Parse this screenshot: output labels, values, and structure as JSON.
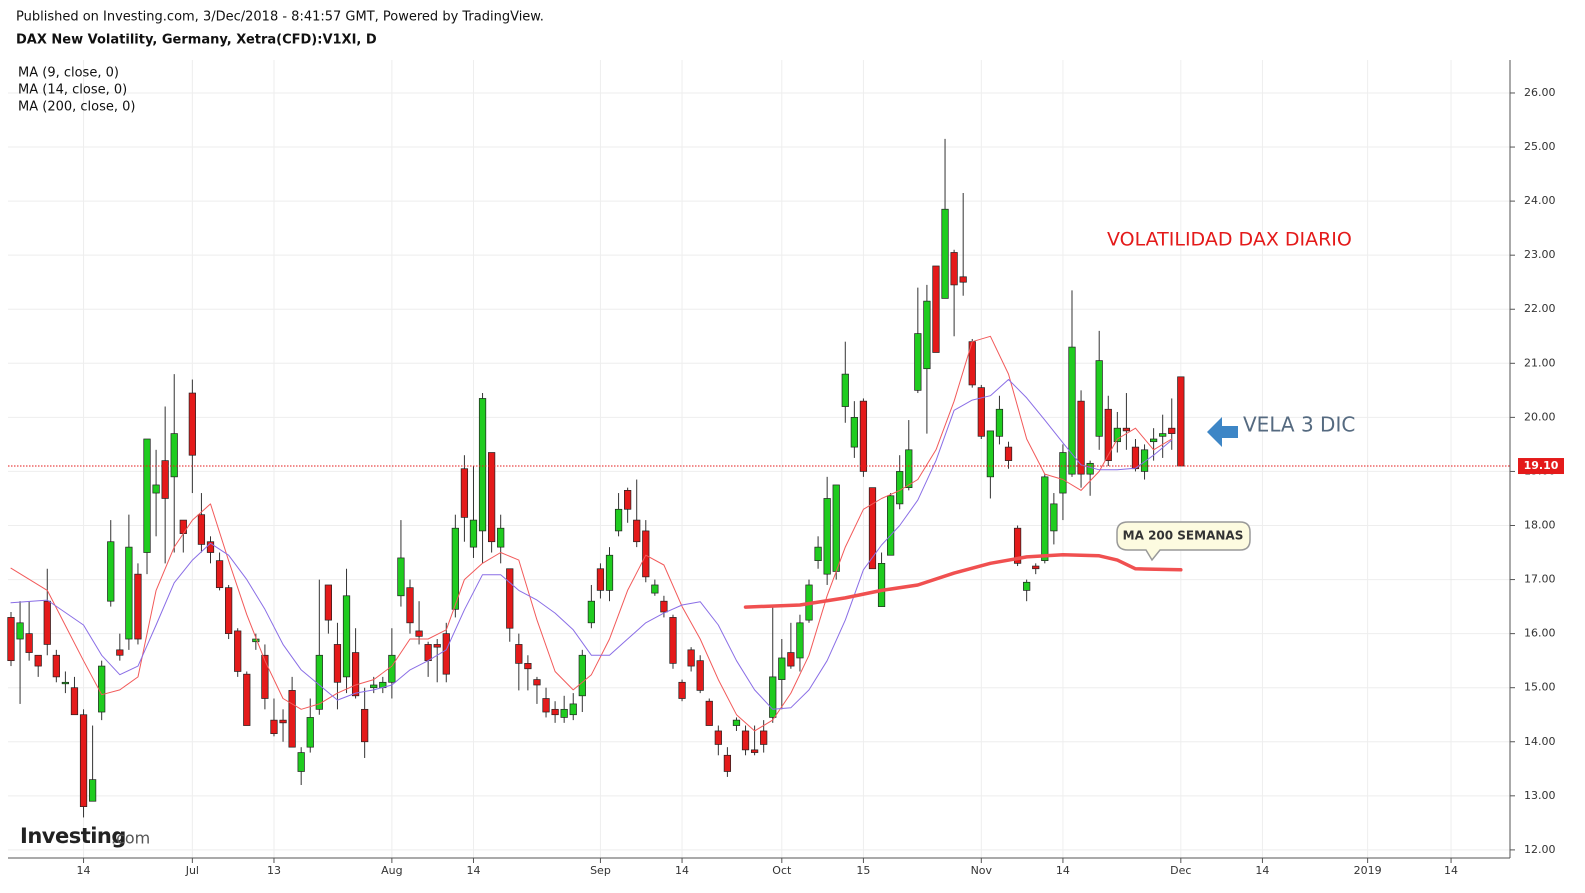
{
  "header": {
    "published": "Published on Investing.com, 3/Dec/2018 - 8:41:57 GMT, Powered by TradingView.",
    "symbol": "DAX New Volatility, Germany, Xetra(CFD):V1XI, D"
  },
  "logo": {
    "brand": "Investing",
    "suffix": ".com"
  },
  "chart_data": {
    "type": "candlestick",
    "x": [
      0,
      1,
      2,
      3,
      4,
      5,
      6,
      7,
      8,
      9,
      10,
      11,
      12,
      13,
      14,
      15,
      16,
      17,
      18,
      19,
      20,
      21,
      22,
      23,
      24,
      25,
      26,
      27,
      28,
      29,
      30,
      31,
      32,
      33,
      34,
      35,
      36,
      37,
      38,
      39,
      40,
      41,
      42,
      43,
      44,
      45,
      46,
      47,
      48,
      49,
      50,
      51,
      52,
      53,
      54,
      55,
      56,
      57,
      58,
      59,
      60,
      61,
      62,
      63,
      64,
      65,
      66,
      67,
      68,
      69,
      70,
      71,
      72,
      73,
      74,
      75,
      76,
      77,
      78,
      79,
      80,
      81,
      82,
      83,
      84,
      85,
      86,
      87,
      88,
      89,
      90,
      91,
      92,
      93,
      94,
      95,
      96,
      97,
      98,
      99,
      100,
      101,
      102,
      103,
      104,
      105,
      106,
      107,
      108,
      109,
      110,
      111,
      112,
      113,
      114,
      115,
      116,
      117,
      118,
      119,
      120,
      121,
      122,
      123,
      124,
      125,
      126,
      127,
      128,
      129
    ],
    "open": [
      16.3,
      15.9,
      16.0,
      15.6,
      16.6,
      15.6,
      15.1,
      15.0,
      14.5,
      12.9,
      14.55,
      16.6,
      15.7,
      15.9,
      17.1,
      17.5,
      18.6,
      19.2,
      18.9,
      18.1,
      20.45,
      18.2,
      17.7,
      17.35,
      16.85,
      16.05,
      15.25,
      15.85,
      15.6,
      14.4,
      14.4,
      14.95,
      13.45,
      13.9,
      14.6,
      16.9,
      15.8,
      15.2,
      15.65,
      14.6,
      15.0,
      15.0,
      15.1,
      16.7,
      16.85,
      16.05,
      15.8,
      15.8,
      16.0,
      16.45,
      19.05,
      17.6,
      17.9,
      19.35,
      17.6,
      17.2,
      15.8,
      15.45,
      15.15,
      14.8,
      14.6,
      14.45,
      14.5,
      14.85,
      16.2,
      17.2,
      16.8,
      17.9,
      18.65,
      18.1,
      17.9,
      16.75,
      16.6,
      16.3,
      15.1,
      15.7,
      15.5,
      14.75,
      14.2,
      13.75,
      14.3,
      14.2,
      13.85,
      14.2,
      14.45,
      15.15,
      15.65,
      15.55,
      16.25,
      17.35,
      17.1,
      17.15,
      20.2,
      19.45,
      20.3,
      18.7,
      16.5,
      17.45,
      18.4,
      18.7,
      20.5,
      20.9,
      22.8,
      22.2,
      23.05,
      22.6,
      21.4,
      20.55,
      18.9,
      19.65,
      19.45,
      17.95,
      16.8,
      17.25,
      17.35,
      17.9,
      18.6,
      18.95,
      20.3,
      18.95,
      19.65,
      20.15,
      19.55,
      19.8,
      19.45,
      19.0,
      19.55,
      19.65,
      19.8,
      20.75
    ],
    "high": [
      16.4,
      16.6,
      16.6,
      15.6,
      17.2,
      15.7,
      15.3,
      15.2,
      14.6,
      14.3,
      15.5,
      18.1,
      16.0,
      18.2,
      17.3,
      19.6,
      19.4,
      20.2,
      20.8,
      18.1,
      20.7,
      18.6,
      17.8,
      17.5,
      16.9,
      16.1,
      15.3,
      16.0,
      15.8,
      14.8,
      14.6,
      15.2,
      13.9,
      14.8,
      17.0,
      16.9,
      16.2,
      17.2,
      16.1,
      15.0,
      15.2,
      15.2,
      16.1,
      18.1,
      17.0,
      16.6,
      15.85,
      15.9,
      16.2,
      18.2,
      19.3,
      19.1,
      20.45,
      19.35,
      18.2,
      17.2,
      16.0,
      15.6,
      15.2,
      15.0,
      14.75,
      14.85,
      14.9,
      15.7,
      16.9,
      17.3,
      17.6,
      18.6,
      18.7,
      18.85,
      18.1,
      17.0,
      16.7,
      16.35,
      15.15,
      15.75,
      15.6,
      14.8,
      14.3,
      13.9,
      14.45,
      14.3,
      14.3,
      14.4,
      16.5,
      15.9,
      16.2,
      16.35,
      17.0,
      17.8,
      18.9,
      18.75,
      21.4,
      20.3,
      20.35,
      18.7,
      17.5,
      18.6,
      19.3,
      19.95,
      22.4,
      22.45,
      22.8,
      25.15,
      23.1,
      24.15,
      21.45,
      20.6,
      19.75,
      20.4,
      19.55,
      18.0,
      17.0,
      17.3,
      18.95,
      18.6,
      19.5,
      22.35,
      20.5,
      19.2,
      21.6,
      20.4,
      20.1,
      20.45,
      19.6,
      19.5,
      19.8,
      20.05,
      20.35,
      20.75
    ],
    "low": [
      15.4,
      14.7,
      15.5,
      15.2,
      15.6,
      15.1,
      14.9,
      14.5,
      12.6,
      12.9,
      14.4,
      16.5,
      15.5,
      15.7,
      15.8,
      17.1,
      17.8,
      17.3,
      17.5,
      17.5,
      18.6,
      17.5,
      17.3,
      16.8,
      15.9,
      15.2,
      14.3,
      15.7,
      14.6,
      14.1,
      14.0,
      13.9,
      13.2,
      13.8,
      14.5,
      16.0,
      14.6,
      14.9,
      14.8,
      13.7,
      14.9,
      14.9,
      14.8,
      16.5,
      16.0,
      15.8,
      15.2,
      15.1,
      15.1,
      16.3,
      17.7,
      17.4,
      17.3,
      17.5,
      17.3,
      15.85,
      14.95,
      14.95,
      14.7,
      14.45,
      14.35,
      14.35,
      14.4,
      14.55,
      16.1,
      16.65,
      16.6,
      17.8,
      18.05,
      17.6,
      16.95,
      16.7,
      16.3,
      15.35,
      14.75,
      15.3,
      14.9,
      14.3,
      13.75,
      13.35,
      14.2,
      13.75,
      13.75,
      13.8,
      14.35,
      14.6,
      15.35,
      15.3,
      16.2,
      17.2,
      16.9,
      17.0,
      19.9,
      19.25,
      18.9,
      17.2,
      16.5,
      17.45,
      18.3,
      18.65,
      20.45,
      19.7,
      21.2,
      22.2,
      21.5,
      22.25,
      20.55,
      19.6,
      18.5,
      19.5,
      19.05,
      17.25,
      16.6,
      17.1,
      17.3,
      17.65,
      18.1,
      18.9,
      18.7,
      18.55,
      19.4,
      19.1,
      19.35,
      19.4,
      19.0,
      18.85,
      19.2,
      19.25,
      19.4,
      19.1
    ],
    "close": [
      15.5,
      16.2,
      15.65,
      15.4,
      15.8,
      15.2,
      15.1,
      14.5,
      12.8,
      13.3,
      15.4,
      17.7,
      15.6,
      17.6,
      15.9,
      19.6,
      18.75,
      18.5,
      19.7,
      17.85,
      19.3,
      17.65,
      17.5,
      16.85,
      16.0,
      15.3,
      14.3,
      15.9,
      14.8,
      14.15,
      14.35,
      13.9,
      13.8,
      14.45,
      15.6,
      16.25,
      15.1,
      16.7,
      14.85,
      14.0,
      15.05,
      15.1,
      15.6,
      17.4,
      16.2,
      15.95,
      15.5,
      15.75,
      15.25,
      17.95,
      18.15,
      18.1,
      20.35,
      17.7,
      17.95,
      16.1,
      15.45,
      15.35,
      15.05,
      14.55,
      14.5,
      14.6,
      14.7,
      15.6,
      16.6,
      16.8,
      17.45,
      18.3,
      18.3,
      17.7,
      17.05,
      16.9,
      16.4,
      15.45,
      14.8,
      15.4,
      14.95,
      14.3,
      13.95,
      13.45,
      14.4,
      13.85,
      13.8,
      13.95,
      15.2,
      15.55,
      15.4,
      16.2,
      16.9,
      17.6,
      18.5,
      18.75,
      20.8,
      20.0,
      19.0,
      17.2,
      17.3,
      18.55,
      19.0,
      19.4,
      21.55,
      22.15,
      21.2,
      23.85,
      22.45,
      22.5,
      20.6,
      19.65,
      19.75,
      20.15,
      19.2,
      17.3,
      16.95,
      17.2,
      18.9,
      18.4,
      19.35,
      21.3,
      18.95,
      19.15,
      21.05,
      19.2,
      19.8,
      19.75,
      19.05,
      19.4,
      19.6,
      19.7,
      19.7,
      19.1
    ],
    "up_color": "#1fcc1f",
    "down_color": "#e41a1a",
    "series": [
      {
        "name": "MA (9, close, 0)",
        "color": "#f25a5a",
        "width": 1,
        "x": [
          0,
          4,
          8,
          10,
          12,
          14,
          16,
          18,
          20,
          22,
          24,
          26,
          28,
          30,
          32,
          34,
          36,
          38,
          40,
          42,
          44,
          46,
          48,
          50,
          52,
          54,
          56,
          58,
          60,
          62,
          64,
          66,
          68,
          70,
          72,
          74,
          76,
          78,
          80,
          82,
          84,
          86,
          88,
          90,
          92,
          94,
          96,
          98,
          100,
          102,
          104,
          106,
          108,
          110,
          112,
          114,
          116,
          118,
          120,
          122,
          124,
          126,
          128
        ],
        "values": [
          17.21,
          16.8,
          15.5,
          14.87,
          14.96,
          15.2,
          16.8,
          17.6,
          18.1,
          18.4,
          17.35,
          16.35,
          15.5,
          14.8,
          14.6,
          14.7,
          14.9,
          15.05,
          15.15,
          15.4,
          15.9,
          15.9,
          16.07,
          17.0,
          17.3,
          17.5,
          17.36,
          16.25,
          15.3,
          14.96,
          15.24,
          15.9,
          16.8,
          17.45,
          17.27,
          16.5,
          15.9,
          15.15,
          14.5,
          14.2,
          14.4,
          14.9,
          15.6,
          16.7,
          17.6,
          18.3,
          18.5,
          18.65,
          18.85,
          19.4,
          20.3,
          21.4,
          21.5,
          20.8,
          19.6,
          18.95,
          18.85,
          18.65,
          19.0,
          19.6,
          19.8,
          19.4,
          19.6
        ]
      },
      {
        "name": "MA (14, close, 0)",
        "color": "#8a6ee6",
        "width": 1,
        "x": [
          0,
          4,
          8,
          10,
          12,
          14,
          16,
          18,
          20,
          22,
          24,
          26,
          28,
          30,
          32,
          34,
          36,
          38,
          40,
          42,
          44,
          46,
          48,
          50,
          52,
          54,
          56,
          58,
          60,
          62,
          64,
          66,
          68,
          70,
          72,
          74,
          76,
          78,
          80,
          82,
          84,
          86,
          88,
          90,
          92,
          94,
          96,
          98,
          100,
          102,
          104,
          106,
          108,
          110,
          112,
          114,
          116,
          118,
          120,
          122,
          124,
          126,
          128
        ],
        "values": [
          16.57,
          16.62,
          16.16,
          15.6,
          15.24,
          15.4,
          16.16,
          16.94,
          17.36,
          17.67,
          17.45,
          17.0,
          16.45,
          15.8,
          15.33,
          15.05,
          14.77,
          14.9,
          14.96,
          15.05,
          15.33,
          15.5,
          15.7,
          16.44,
          17.09,
          17.09,
          16.8,
          16.62,
          16.38,
          16.07,
          15.6,
          15.6,
          15.9,
          16.2,
          16.38,
          16.53,
          16.59,
          16.16,
          15.5,
          14.96,
          14.6,
          14.63,
          14.96,
          15.5,
          16.25,
          17.18,
          17.64,
          18.0,
          18.47,
          19.2,
          20.13,
          20.32,
          20.4,
          20.7,
          20.36,
          19.95,
          19.53,
          19.12,
          19.03,
          19.03,
          19.06,
          19.3,
          19.58
        ]
      },
      {
        "name": "MA (200, close, 0)",
        "color": "#f05050",
        "width": 3.5,
        "x": [
          81,
          87,
          92,
          96,
          100,
          104,
          108,
          112,
          116,
          120,
          122,
          124,
          129
        ],
        "values": [
          16.49,
          16.53,
          16.66,
          16.8,
          16.9,
          17.12,
          17.3,
          17.42,
          17.46,
          17.44,
          17.36,
          17.2,
          17.18
        ]
      }
    ],
    "xlim": [
      -0.33,
      165.3
    ],
    "xticks": [
      {
        "value": 8,
        "label": "14"
      },
      {
        "value": 20,
        "label": "Jul"
      },
      {
        "value": 29,
        "label": "13"
      },
      {
        "value": 42,
        "label": "Aug"
      },
      {
        "value": 51,
        "label": "14"
      },
      {
        "value": 65,
        "label": "Sep"
      },
      {
        "value": 74,
        "label": "14"
      },
      {
        "value": 85,
        "label": "Oct"
      },
      {
        "value": 94,
        "label": "15"
      },
      {
        "value": 107,
        "label": "Nov"
      },
      {
        "value": 116,
        "label": "14"
      },
      {
        "value": 129,
        "label": "Dec"
      },
      {
        "value": 138,
        "label": "14"
      },
      {
        "value": 149.6,
        "label": "2019"
      },
      {
        "value": 158.8,
        "label": "14"
      }
    ],
    "ylim": [
      11.85,
      26.61
    ],
    "yticks": [
      {
        "value": 12,
        "label": "12.00"
      },
      {
        "value": 13,
        "label": "13.00"
      },
      {
        "value": 14,
        "label": "14.00"
      },
      {
        "value": 15,
        "label": "15.00"
      },
      {
        "value": 16,
        "label": "16.00"
      },
      {
        "value": 17,
        "label": "17.00"
      },
      {
        "value": 18,
        "label": "18.00"
      },
      {
        "value": 19,
        "label": "19.00"
      },
      {
        "value": 20,
        "label": "20.00"
      },
      {
        "value": 21,
        "label": "21.00"
      },
      {
        "value": 22,
        "label": "22.00"
      },
      {
        "value": 23,
        "label": "23.00"
      },
      {
        "value": 24,
        "label": "24.00"
      },
      {
        "value": 25,
        "label": "25.00"
      },
      {
        "value": 26,
        "label": "26.00"
      }
    ],
    "grid": true,
    "last_price": {
      "value": 19.1,
      "label": "19.10"
    },
    "annotations": {
      "title_note": "VOLATILIDAD DAX DIARIO",
      "arrow_note": "VELA 3 DIC",
      "callout": "MA 200 SEMANAS"
    }
  }
}
